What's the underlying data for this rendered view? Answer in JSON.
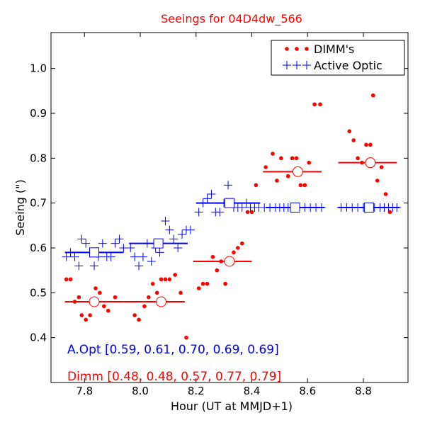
{
  "chart_data": {
    "type": "scatter",
    "title": "Seeings for 04D4dw_566",
    "xlabel": "Hour (UT at MMJD+1)",
    "ylabel": "Seeing (\")",
    "xlim": [
      7.68,
      8.96
    ],
    "ylim": [
      0.3,
      1.08
    ],
    "xticks": [
      7.8,
      8.0,
      8.2,
      8.4,
      8.6,
      8.8
    ],
    "xtick_labels": [
      "7.8",
      "8.0",
      "8.2",
      "8.4",
      "8.6",
      "8.8"
    ],
    "yticks": [
      0.4,
      0.5,
      0.6,
      0.7,
      0.8,
      0.9,
      1.0
    ],
    "ytick_labels": [
      "0.4",
      "0.5",
      "0.6",
      "0.7",
      "0.8",
      "0.9",
      "1.0"
    ],
    "grid": false,
    "legend_position": "top-right",
    "series": [
      {
        "name": "DIMM's",
        "color": "#ff0000",
        "marker": "dot",
        "points": [
          [
            7.735,
            0.53
          ],
          [
            7.75,
            0.53
          ],
          [
            7.765,
            0.48
          ],
          [
            7.78,
            0.49
          ],
          [
            7.79,
            0.45
          ],
          [
            7.805,
            0.44
          ],
          [
            7.82,
            0.45
          ],
          [
            7.84,
            0.51
          ],
          [
            7.855,
            0.5
          ],
          [
            7.87,
            0.47
          ],
          [
            7.885,
            0.46
          ],
          [
            7.91,
            0.49
          ],
          [
            7.98,
            0.45
          ],
          [
            7.995,
            0.44
          ],
          [
            8.015,
            0.47
          ],
          [
            8.03,
            0.49
          ],
          [
            8.045,
            0.52
          ],
          [
            8.06,
            0.5
          ],
          [
            8.075,
            0.53
          ],
          [
            8.09,
            0.53
          ],
          [
            8.105,
            0.53
          ],
          [
            8.125,
            0.54
          ],
          [
            8.145,
            0.5
          ],
          [
            8.165,
            0.4
          ],
          [
            8.21,
            0.51
          ],
          [
            8.225,
            0.52
          ],
          [
            8.24,
            0.52
          ],
          [
            8.26,
            0.58
          ],
          [
            8.275,
            0.55
          ],
          [
            8.29,
            0.57
          ],
          [
            8.305,
            0.52
          ],
          [
            8.32,
            0.57
          ],
          [
            8.335,
            0.59
          ],
          [
            8.35,
            0.6
          ],
          [
            8.365,
            0.61
          ],
          [
            8.385,
            0.68
          ],
          [
            8.4,
            0.68
          ],
          [
            8.415,
            0.74
          ],
          [
            8.45,
            0.78
          ],
          [
            8.475,
            0.81
          ],
          [
            8.49,
            0.75
          ],
          [
            8.505,
            0.8
          ],
          [
            8.53,
            0.76
          ],
          [
            8.545,
            0.8
          ],
          [
            8.56,
            0.8
          ],
          [
            8.575,
            0.74
          ],
          [
            8.59,
            0.74
          ],
          [
            8.605,
            0.79
          ],
          [
            8.625,
            0.92
          ],
          [
            8.645,
            0.92
          ],
          [
            8.75,
            0.86
          ],
          [
            8.765,
            0.84
          ],
          [
            8.78,
            0.8
          ],
          [
            8.795,
            0.79
          ],
          [
            8.81,
            0.83
          ],
          [
            8.825,
            0.83
          ],
          [
            8.835,
            0.94
          ],
          [
            8.85,
            0.75
          ],
          [
            8.865,
            0.78
          ],
          [
            8.88,
            0.72
          ],
          [
            8.895,
            0.68
          ]
        ],
        "bins": [
          {
            "x_start": 7.73,
            "x_end": 7.94,
            "mean_x": 7.835,
            "value": 0.48
          },
          {
            "x_start": 7.94,
            "x_end": 8.16,
            "mean_x": 8.075,
            "value": 0.48
          },
          {
            "x_start": 8.19,
            "x_end": 8.4,
            "mean_x": 8.32,
            "value": 0.57
          },
          {
            "x_start": 8.44,
            "x_end": 8.65,
            "mean_x": 8.565,
            "value": 0.77
          },
          {
            "x_start": 8.71,
            "x_end": 8.92,
            "mean_x": 8.825,
            "value": 0.79
          }
        ]
      },
      {
        "name": "Active Optic",
        "color": "#0000ff",
        "marker": "plus",
        "points": [
          [
            7.735,
            0.58
          ],
          [
            7.75,
            0.59
          ],
          [
            7.765,
            0.58
          ],
          [
            7.78,
            0.56
          ],
          [
            7.79,
            0.62
          ],
          [
            7.805,
            0.61
          ],
          [
            7.82,
            0.59
          ],
          [
            7.835,
            0.56
          ],
          [
            7.85,
            0.58
          ],
          [
            7.865,
            0.61
          ],
          [
            7.88,
            0.58
          ],
          [
            7.895,
            0.58
          ],
          [
            7.91,
            0.61
          ],
          [
            7.925,
            0.62
          ],
          [
            7.94,
            0.6
          ],
          [
            7.965,
            0.6
          ],
          [
            7.98,
            0.58
          ],
          [
            7.995,
            0.56
          ],
          [
            8.01,
            0.58
          ],
          [
            8.025,
            0.61
          ],
          [
            8.04,
            0.57
          ],
          [
            8.055,
            0.6
          ],
          [
            8.07,
            0.59
          ],
          [
            8.09,
            0.66
          ],
          [
            8.105,
            0.64
          ],
          [
            8.12,
            0.62
          ],
          [
            8.135,
            0.6
          ],
          [
            8.15,
            0.63
          ],
          [
            8.165,
            0.64
          ],
          [
            8.18,
            0.64
          ],
          [
            8.21,
            0.68
          ],
          [
            8.225,
            0.7
          ],
          [
            8.24,
            0.71
          ],
          [
            8.255,
            0.72
          ],
          [
            8.27,
            0.68
          ],
          [
            8.285,
            0.68
          ],
          [
            8.3,
            0.7
          ],
          [
            8.315,
            0.74
          ],
          [
            8.335,
            0.69
          ],
          [
            8.35,
            0.69
          ],
          [
            8.365,
            0.69
          ],
          [
            8.38,
            0.7
          ],
          [
            8.395,
            0.69
          ],
          [
            8.41,
            0.69
          ],
          [
            8.425,
            0.69
          ],
          [
            8.445,
            0.69
          ],
          [
            8.465,
            0.69
          ],
          [
            8.485,
            0.69
          ],
          [
            8.5,
            0.69
          ],
          [
            8.515,
            0.69
          ],
          [
            8.53,
            0.69
          ],
          [
            8.55,
            0.69
          ],
          [
            8.57,
            0.69
          ],
          [
            8.59,
            0.69
          ],
          [
            8.61,
            0.69
          ],
          [
            8.63,
            0.69
          ],
          [
            8.65,
            0.69
          ],
          [
            8.72,
            0.69
          ],
          [
            8.74,
            0.69
          ],
          [
            8.76,
            0.69
          ],
          [
            8.78,
            0.69
          ],
          [
            8.8,
            0.69
          ],
          [
            8.82,
            0.69
          ],
          [
            8.84,
            0.69
          ],
          [
            8.86,
            0.69
          ],
          [
            8.875,
            0.69
          ],
          [
            8.89,
            0.69
          ],
          [
            8.905,
            0.69
          ],
          [
            8.92,
            0.69
          ]
        ],
        "bins": [
          {
            "x_start": 7.73,
            "x_end": 7.94,
            "mean_x": 7.835,
            "value": 0.59
          },
          {
            "x_start": 7.96,
            "x_end": 8.17,
            "mean_x": 8.065,
            "value": 0.61
          },
          {
            "x_start": 8.2,
            "x_end": 8.43,
            "mean_x": 8.32,
            "value": 0.7
          },
          {
            "x_start": 8.45,
            "x_end": 8.66,
            "mean_x": 8.555,
            "value": 0.69
          },
          {
            "x_start": 8.71,
            "x_end": 8.93,
            "mean_x": 8.82,
            "value": 0.69
          }
        ]
      }
    ],
    "annotations": [
      {
        "text": "A.Opt [0.59, 0.61, 0.70, 0.69, 0.69]",
        "color": "#0000ff"
      },
      {
        "text": "Dimm [0.48, 0.48, 0.57, 0.77, 0.79]",
        "color": "#ff0000"
      }
    ]
  }
}
